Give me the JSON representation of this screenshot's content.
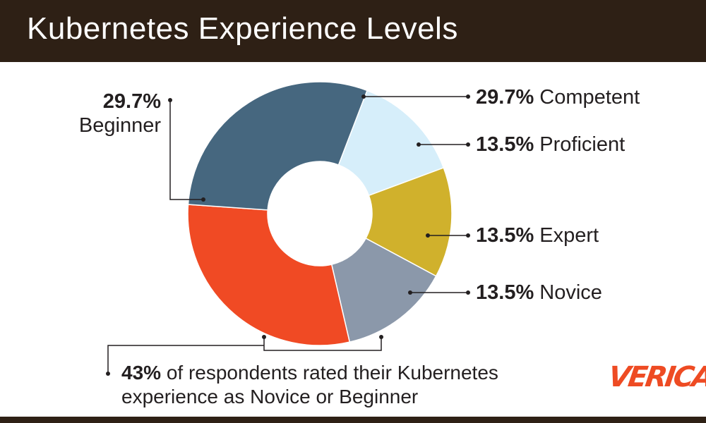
{
  "title": "Kubernetes Experience Levels",
  "chart_data": {
    "type": "pie",
    "donut": true,
    "slices": [
      {
        "label": "Competent",
        "value": 29.7,
        "pct_label": "29.7%",
        "color": "#f04a24"
      },
      {
        "label": "Proficient",
        "value": 13.5,
        "pct_label": "13.5%",
        "color": "#d6eefa"
      },
      {
        "label": "Expert",
        "value": 13.5,
        "pct_label": "13.5%",
        "color": "#d0b12c"
      },
      {
        "label": "Novice",
        "value": 13.5,
        "pct_label": "13.5%",
        "color": "#8b98aa"
      },
      {
        "label": "Beginner",
        "value": 29.7,
        "pct_label": "29.7%",
        "color": "#46677f"
      }
    ]
  },
  "note": {
    "bold": "43%",
    "text_line1": " of respondents rated their Kubernetes",
    "text_line2": "experience as Novice or Beginner"
  },
  "logo_text": "VERICA"
}
